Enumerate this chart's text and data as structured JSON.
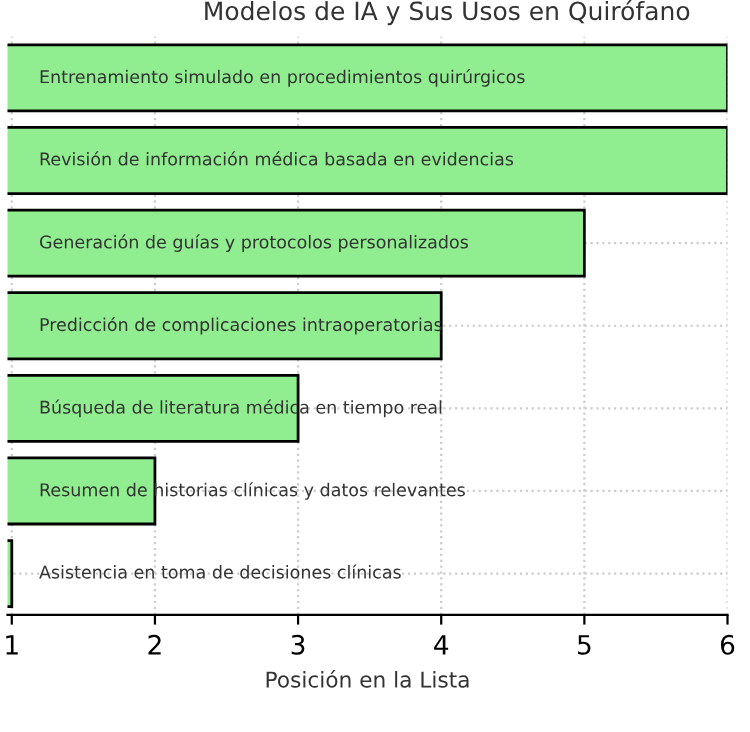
{
  "chart_data": {
    "type": "bar",
    "orientation": "horizontal",
    "title": "Modelos de IA y Sus Usos en Quirófano",
    "xlabel": "Posición en la Lista",
    "categories": [
      "Entrenamiento simulado en procedimientos quirúrgicos",
      "Revisión de información médica basada en evidencias",
      "Generación de guías y protocolos personalizados",
      "Predicción de complicaciones intraoperatorias",
      "Búsqueda de literatura médica en tiempo real",
      "Resumen de historias clínicas y datos relevantes",
      "Asistencia en toma de decisiones clínicas"
    ],
    "values": [
      6,
      6,
      5,
      4,
      3,
      2,
      1
    ],
    "color": "#90ee90",
    "xlim": [
      0.97,
      6
    ],
    "xticks": [
      1,
      2,
      3,
      4,
      5,
      6
    ],
    "grid": true
  }
}
